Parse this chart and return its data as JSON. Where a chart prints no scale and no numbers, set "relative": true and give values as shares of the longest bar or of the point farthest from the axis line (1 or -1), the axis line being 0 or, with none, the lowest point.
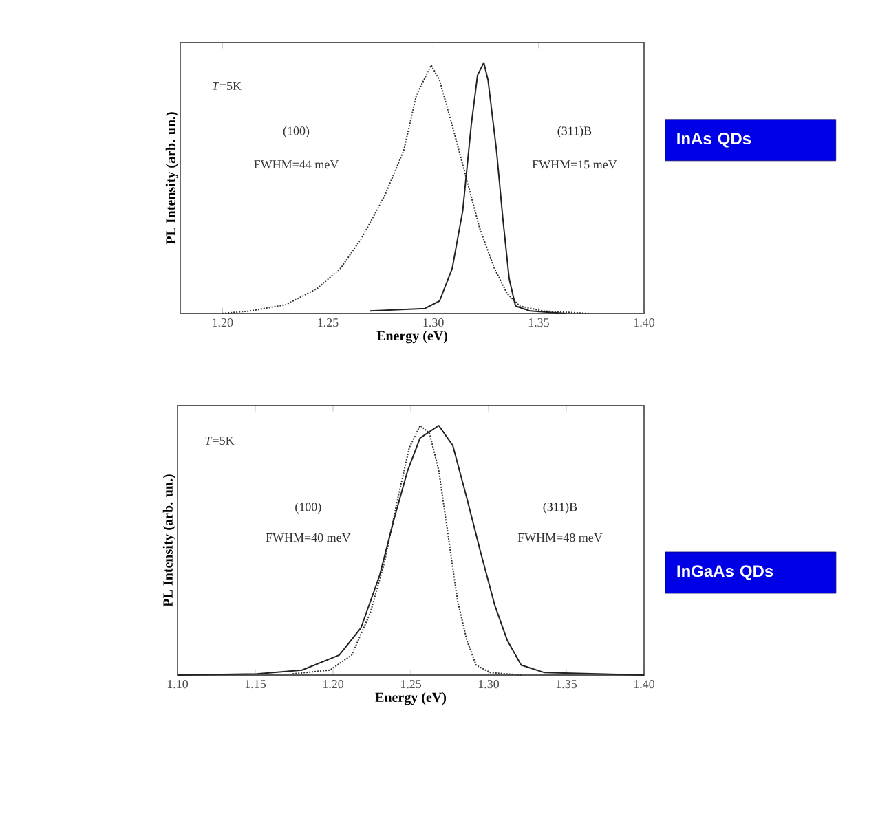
{
  "chart_data": [
    {
      "type": "line",
      "xlabel": "Energy (eV)",
      "ylabel": "PL Intensity (arb. un.)",
      "relative": true,
      "marker": "none",
      "xlim": [
        1.18,
        1.4
      ],
      "xticks": [
        {
          "value": 1.2,
          "label": "1.20"
        },
        {
          "value": 1.25,
          "label": "1.25"
        },
        {
          "value": 1.3,
          "label": "1.30"
        },
        {
          "value": 1.35,
          "label": "1.35"
        },
        {
          "value": 1.4,
          "label": "1.40"
        }
      ],
      "annotations": [
        "*T*=5K",
        "FWHM=44 meV",
        "FWHM=15 meV",
        "InAs QDs"
      ],
      "series": [
        {
          "name": "(100)",
          "color": "#333333",
          "line_style": "dotted",
          "x": [
            1.2,
            1.213,
            1.23,
            1.245,
            1.256,
            1.266,
            1.277,
            1.286,
            1.292,
            1.299,
            1.303,
            1.309,
            1.316,
            1.322,
            1.329,
            1.335,
            1.341,
            1.352,
            1.374
          ],
          "values": [
            0,
            0.01,
            0.035,
            0.1,
            0.18,
            0.3,
            0.47,
            0.65,
            0.87,
            0.99,
            0.93,
            0.75,
            0.53,
            0.34,
            0.18,
            0.08,
            0.03,
            0.01,
            0
          ]
        },
        {
          "name": "(311)B",
          "color": "#222222",
          "line_style": "solid",
          "x": [
            1.27,
            1.296,
            1.303,
            1.309,
            1.314,
            1.318,
            1.321,
            1.324,
            1.326,
            1.33,
            1.333,
            1.336,
            1.339,
            1.346,
            1.363
          ],
          "values": [
            0.01,
            0.02,
            0.05,
            0.18,
            0.41,
            0.75,
            0.95,
            1,
            0.93,
            0.65,
            0.38,
            0.14,
            0.03,
            0.01,
            0
          ]
        }
      ]
    },
    {
      "type": "line",
      "xlabel": "Energy (eV)",
      "ylabel": "PL Intensity (arb. un.)",
      "relative": true,
      "marker": "none",
      "xlim": [
        1.1,
        1.4
      ],
      "xticks": [
        {
          "value": 1.1,
          "label": "1.10"
        },
        {
          "value": 1.15,
          "label": "1.15"
        },
        {
          "value": 1.2,
          "label": "1.20"
        },
        {
          "value": 1.25,
          "label": "1.25"
        },
        {
          "value": 1.3,
          "label": "1.30"
        },
        {
          "value": 1.35,
          "label": "1.35"
        },
        {
          "value": 1.4,
          "label": "1.40"
        }
      ],
      "annotations": [
        "*T*=5K",
        "FWHM=40 meV",
        "FWHM=48 meV",
        "InGaAs QDs"
      ],
      "series": [
        {
          "name": "(100)",
          "color": "#333333",
          "line_style": "dotted",
          "x": [
            1.174,
            1.198,
            1.212,
            1.224,
            1.233,
            1.241,
            1.249,
            1.256,
            1.262,
            1.268,
            1.274,
            1.28,
            1.286,
            1.292,
            1.301,
            1.321
          ],
          "values": [
            0.005,
            0.02,
            0.08,
            0.25,
            0.45,
            0.69,
            0.91,
            1,
            0.97,
            0.82,
            0.56,
            0.3,
            0.14,
            0.04,
            0.01,
            0
          ]
        },
        {
          "name": "(311)B",
          "color": "#222222",
          "line_style": "solid",
          "x": [
            1.1,
            1.151,
            1.18,
            1.204,
            1.218,
            1.23,
            1.239,
            1.248,
            1.256,
            1.268,
            1.277,
            1.286,
            1.295,
            1.304,
            1.312,
            1.321,
            1.336,
            1.4
          ],
          "values": [
            0,
            0.005,
            0.02,
            0.08,
            0.19,
            0.4,
            0.62,
            0.82,
            0.95,
            1,
            0.92,
            0.71,
            0.49,
            0.28,
            0.14,
            0.04,
            0.01,
            0
          ]
        }
      ]
    }
  ]
}
